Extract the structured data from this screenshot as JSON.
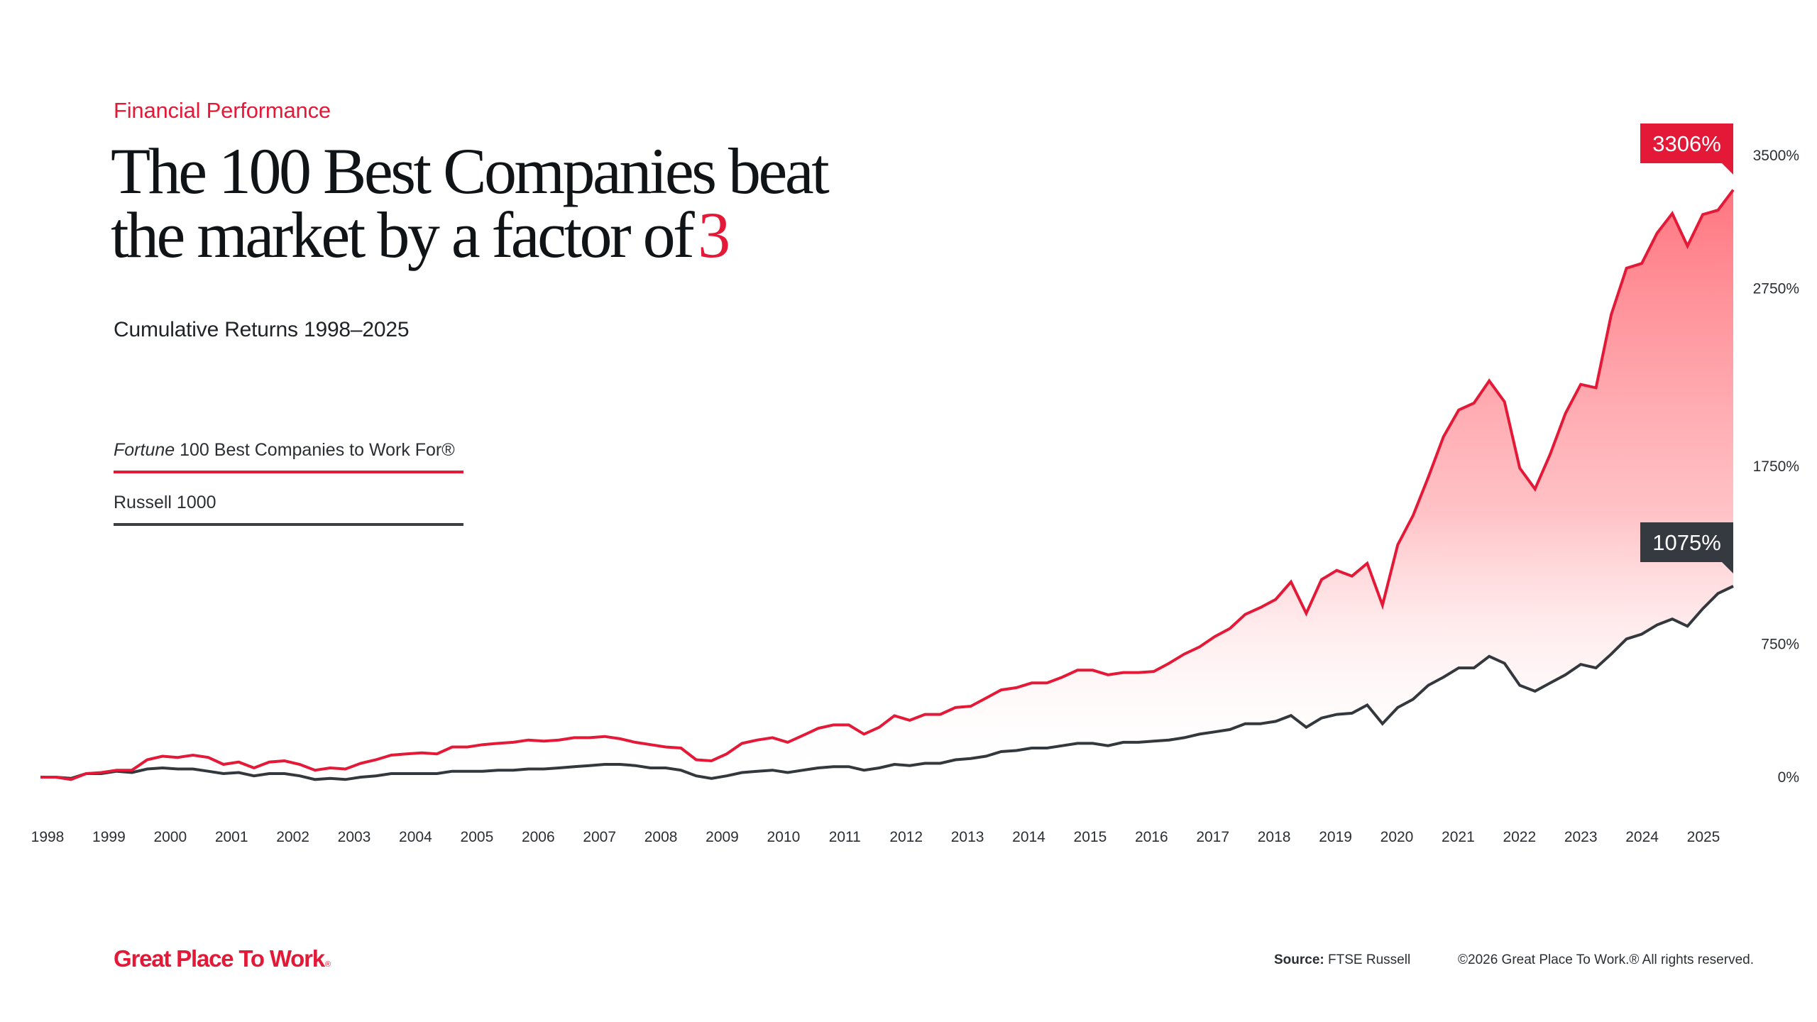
{
  "header": {
    "eyebrow": "Financial Performance",
    "headline_line1": "The 100 Best Companies beat",
    "headline_line2": "the market by a factor of",
    "headline_accent": "3",
    "subtitle": "Cumulative Returns 1998–2025"
  },
  "legend": {
    "fortune_italic": "Fortune",
    "fortune_rest": " 100 Best Companies to Work For®",
    "russell": "Russell 1000"
  },
  "colors": {
    "fortune": "#e31937",
    "russell": "#33383d",
    "callout_dark": "#343a40",
    "brand": "#e31937"
  },
  "chart_data": {
    "type": "line",
    "title": "Cumulative Returns 1998–2025",
    "xlabel": "",
    "ylabel": "",
    "x_ticks": [
      "1998",
      "1999",
      "2000",
      "2001",
      "2002",
      "2003",
      "2004",
      "2005",
      "2006",
      "2007",
      "2008",
      "2009",
      "2010",
      "2011",
      "2012",
      "2013",
      "2014",
      "2015",
      "2016",
      "2017",
      "2018",
      "2019",
      "2020",
      "2021",
      "2022",
      "2023",
      "2024",
      "2025"
    ],
    "y_ticks": [
      0,
      750,
      1750,
      2750,
      3500
    ],
    "y_tick_labels": [
      "0%",
      "750%",
      "1750%",
      "2750%",
      "3500%"
    ],
    "ylim": [
      0,
      3500
    ],
    "x_range": [
      1998.0,
      2025.75
    ],
    "x_start": 1998.0,
    "x_step": 0.25,
    "grid": false,
    "legend_position": "left",
    "series": [
      {
        "name": "Fortune 100 Best Companies to Work For®",
        "area_fill": true,
        "end_label": "3306%",
        "values": [
          0,
          0,
          -13,
          20,
          26,
          39,
          39,
          98,
          118,
          111,
          124,
          111,
          72,
          85,
          52,
          85,
          92,
          72,
          39,
          52,
          46,
          78,
          98,
          124,
          131,
          137,
          131,
          170,
          170,
          183,
          190,
          196,
          209,
          203,
          209,
          222,
          222,
          229,
          216,
          196,
          183,
          170,
          164,
          98,
          92,
          131,
          190,
          209,
          222,
          196,
          235,
          275,
          294,
          294,
          242,
          281,
          346,
          320,
          353,
          353,
          392,
          399,
          445,
          491,
          504,
          530,
          530,
          563,
          602,
          602,
          576,
          589,
          589,
          595,
          641,
          693,
          733,
          791,
          837,
          916,
          955,
          1001,
          1099,
          922,
          1112,
          1164,
          1132,
          1204,
          968,
          1308,
          1472,
          1688,
          1917,
          2067,
          2106,
          2231,
          2113,
          1740,
          1622,
          1819,
          2048,
          2211,
          2192,
          2604,
          2865,
          2892,
          3062,
          3173,
          2990,
          3167,
          3192,
          3306
        ]
      },
      {
        "name": "Russell 1000",
        "area_fill": false,
        "end_label": "1075%",
        "values": [
          0,
          0,
          -7,
          20,
          20,
          33,
          26,
          46,
          52,
          46,
          46,
          33,
          20,
          26,
          7,
          20,
          20,
          7,
          -13,
          -7,
          -13,
          0,
          7,
          20,
          20,
          20,
          20,
          33,
          33,
          33,
          39,
          39,
          46,
          46,
          52,
          59,
          65,
          72,
          72,
          65,
          52,
          52,
          39,
          7,
          -7,
          7,
          26,
          33,
          39,
          26,
          39,
          52,
          59,
          59,
          39,
          52,
          72,
          65,
          78,
          78,
          98,
          105,
          118,
          144,
          150,
          164,
          164,
          177,
          190,
          190,
          177,
          196,
          196,
          203,
          209,
          222,
          242,
          255,
          268,
          301,
          301,
          314,
          347,
          281,
          333,
          353,
          360,
          406,
          301,
          392,
          438,
          517,
          563,
          615,
          615,
          680,
          641,
          517,
          484,
          530,
          576,
          635,
          615,
          693,
          778,
          805,
          857,
          890,
          850,
          948,
          1034,
          1075
        ]
      }
    ]
  },
  "footer": {
    "logo": "Great Place To Work",
    "logo_mark": "®",
    "source_label": "Source:",
    "source_value": " FTSE Russell",
    "copyright": "©2026 Great Place To Work.® All rights reserved."
  }
}
